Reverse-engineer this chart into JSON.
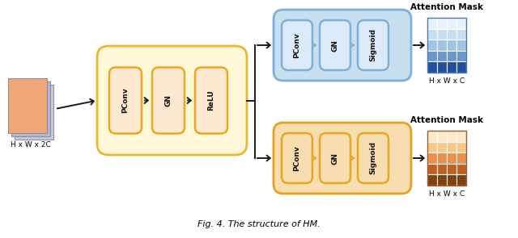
{
  "fig_width": 6.4,
  "fig_height": 2.95,
  "dpi": 100,
  "bg_color": "#ffffff",
  "caption": "Fig. 4. The structure of HM.",
  "input_stack_colors": [
    "#c8c8e0",
    "#b0b8d8",
    "#f0a878"
  ],
  "input_label": "H x W x 2C",
  "main_box_fill": "#fef8d8",
  "main_box_edge": "#e8b830",
  "blue_box_fill": "#c8dff0",
  "blue_box_edge": "#80b0d8",
  "orange_box_fill": "#f8ddb0",
  "orange_box_edge": "#e8a020",
  "inner_box_fill_main": "#fde8d0",
  "inner_box_edge_main": "#e8a820",
  "inner_box_fill_blue": "#dbeaf8",
  "inner_box_edge_blue": "#80b0d8",
  "inner_box_fill_orange": "#f8ddb0",
  "inner_box_edge_orange": "#e8a820",
  "arrow_color_black": "#1a1a1a",
  "arrow_color_blue": "#80b0d8",
  "arrow_color_orange": "#e8a820",
  "attention_mask_label": "Attention Mask",
  "hwc_label": "H x W x C",
  "main_blocks": [
    "PConv",
    "GN",
    "ReLU"
  ],
  "branch_blocks": [
    "PConv",
    "GN",
    "Sigmoid"
  ],
  "blue_grid_colors_rows": [
    "#e8f2fc",
    "#c8dff0",
    "#a0c4e4",
    "#6898cc",
    "#2050a0"
  ],
  "orange_grid_colors_rows": [
    "#fde8cc",
    "#f8c888",
    "#e89050",
    "#c06020",
    "#804010"
  ],
  "font_family": "DejaVu Sans",
  "label_fontsize": 6.5,
  "block_fontsize": 6.5,
  "attn_fontsize": 7.5,
  "caption_fontsize": 8
}
